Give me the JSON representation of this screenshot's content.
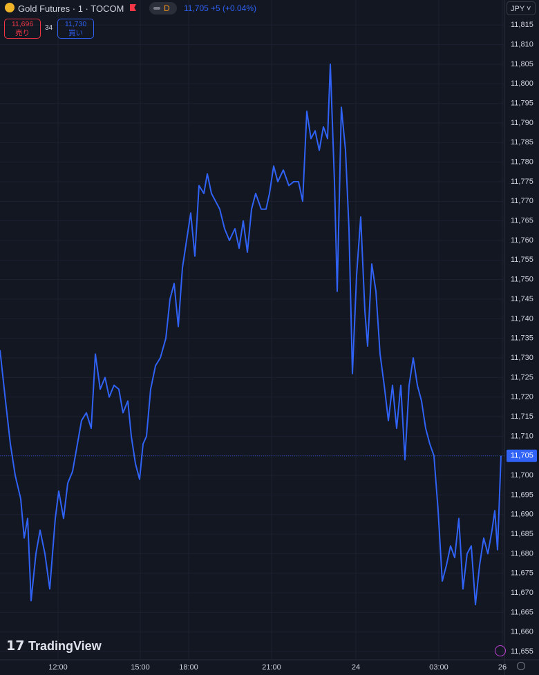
{
  "header": {
    "symbol": "Gold Futures · 1 · TOCOM",
    "interval_badge": "D",
    "price": "11,705",
    "change": "+5 (+0.04%)",
    "sell_price": "11,696",
    "sell_label": "売り",
    "spread": "34",
    "buy_price": "11,730",
    "buy_label": "買い",
    "currency": "JPY",
    "brand": "TradingView"
  },
  "chart_data": {
    "type": "line",
    "color": "#2f62f5",
    "grid": true,
    "xlim": [
      0,
      727
    ],
    "xticks": [
      {
        "value": 84,
        "label": "12:00"
      },
      {
        "value": 203,
        "label": "15:00"
      },
      {
        "value": 273,
        "label": "18:00"
      },
      {
        "value": 393,
        "label": "21:00"
      },
      {
        "value": 515,
        "label": "24"
      },
      {
        "value": 635,
        "label": "03:00"
      },
      {
        "value": 727,
        "label": "26"
      }
    ],
    "ylim": [
      11652.9,
      11821.4
    ],
    "yticks": [
      {
        "value": 11655,
        "label": "11,655"
      },
      {
        "value": 11660,
        "label": "11,660"
      },
      {
        "value": 11665,
        "label": "11,665"
      },
      {
        "value": 11670,
        "label": "11,670"
      },
      {
        "value": 11675,
        "label": "11,675"
      },
      {
        "value": 11680,
        "label": "11,680"
      },
      {
        "value": 11685,
        "label": "11,685"
      },
      {
        "value": 11690,
        "label": "11,690"
      },
      {
        "value": 11695,
        "label": "11,695"
      },
      {
        "value": 11700,
        "label": "11,700"
      },
      {
        "value": 11705,
        "label": "11,705"
      },
      {
        "value": 11710,
        "label": "11,710"
      },
      {
        "value": 11715,
        "label": "11,715"
      },
      {
        "value": 11720,
        "label": "11,720"
      },
      {
        "value": 11725,
        "label": "11,725"
      },
      {
        "value": 11730,
        "label": "11,730"
      },
      {
        "value": 11735,
        "label": "11,735"
      },
      {
        "value": 11740,
        "label": "11,740"
      },
      {
        "value": 11745,
        "label": "11,745"
      },
      {
        "value": 11750,
        "label": "11,750"
      },
      {
        "value": 11755,
        "label": "11,755"
      },
      {
        "value": 11760,
        "label": "11,760"
      },
      {
        "value": 11765,
        "label": "11,765"
      },
      {
        "value": 11770,
        "label": "11,770"
      },
      {
        "value": 11775,
        "label": "11,775"
      },
      {
        "value": 11780,
        "label": "11,780"
      },
      {
        "value": 11785,
        "label": "11,785"
      },
      {
        "value": 11790,
        "label": "11,790"
      },
      {
        "value": 11795,
        "label": "11,795"
      },
      {
        "value": 11800,
        "label": "11,800"
      },
      {
        "value": 11805,
        "label": "11,805"
      },
      {
        "value": 11810,
        "label": "11,810"
      },
      {
        "value": 11815,
        "label": "11,815"
      }
    ],
    "last_price": {
      "value": 11705,
      "label": "11,705"
    },
    "x": [
      0,
      8,
      15,
      22,
      30,
      35,
      40,
      45,
      52,
      58,
      65,
      72,
      80,
      85,
      92,
      98,
      105,
      112,
      118,
      125,
      132,
      138,
      145,
      152,
      158,
      165,
      172,
      178,
      185,
      190,
      196,
      202,
      207,
      212,
      218,
      225,
      232,
      240,
      246,
      252,
      258,
      264,
      270,
      276,
      282,
      288,
      295,
      300,
      306,
      312,
      318,
      325,
      332,
      340,
      346,
      352,
      358,
      364,
      370,
      378,
      385,
      390,
      396,
      402,
      410,
      418,
      425,
      432,
      438,
      444,
      450,
      456,
      462,
      468,
      474,
      478,
      484,
      488,
      494,
      500,
      505,
      510,
      516,
      522,
      528,
      532,
      538,
      544,
      550,
      556,
      562,
      568,
      574,
      580,
      586,
      592,
      598,
      604,
      610,
      616,
      622,
      628,
      634,
      640,
      646,
      652,
      658,
      664,
      670,
      676,
      682,
      688,
      694,
      700,
      706,
      712,
      716,
      720,
      725
    ],
    "values": [
      11732,
      11719,
      11708,
      11700,
      11694,
      11684,
      11689,
      11668,
      11680,
      11686,
      11680,
      11671,
      11689,
      11696,
      11689,
      11698,
      11701,
      11708,
      11714,
      11716,
      11712,
      11731,
      11722,
      11725,
      11720,
      11723,
      11722,
      11716,
      11719,
      11710,
      11703,
      11699,
      11708,
      11710,
      11722,
      11728,
      11730,
      11735,
      11745,
      11749,
      11738,
      11753,
      11760,
      11767,
      11756,
      11774,
      11772,
      11777,
      11772,
      11770,
      11768,
      11763,
      11760,
      11763,
      11758,
      11765,
      11757,
      11768,
      11772,
      11768,
      11768,
      11772,
      11779,
      11775,
      11778,
      11774,
      11775,
      11775,
      11770,
      11793,
      11786,
      11788,
      11783,
      11789,
      11786,
      11805,
      11775,
      11747,
      11794,
      11783,
      11763,
      11726,
      11751,
      11766,
      11742,
      11733,
      11754,
      11747,
      11731,
      11723,
      11714,
      11723,
      11712,
      11723,
      11704,
      11723,
      11730,
      11723,
      11719,
      11712,
      11708,
      11705,
      11691,
      11673,
      11677,
      11682,
      11679,
      11689,
      11671,
      11680,
      11682,
      11667,
      11677,
      11684,
      11680,
      11686,
      11691,
      11681,
      11705
    ]
  }
}
